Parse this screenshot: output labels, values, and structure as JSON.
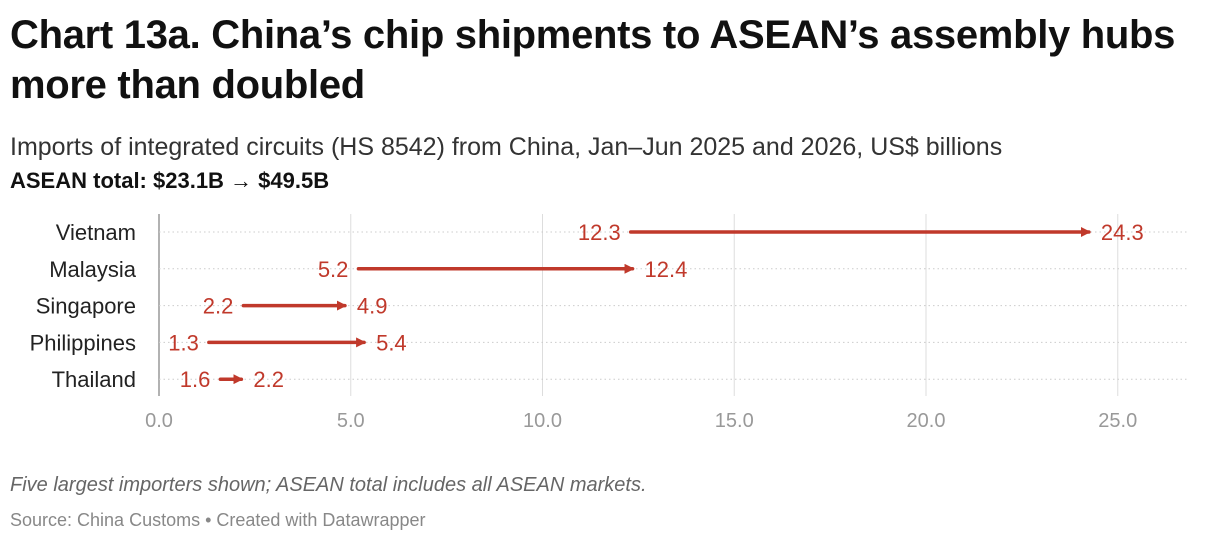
{
  "title": "Chart 13a. China’s chip shipments to ASEAN’s assembly hubs more than doubled",
  "subtitle": "Imports of integrated circuits (HS 8542) from China, Jan–Jun 2025 and 2026, US$ billions",
  "total_label": "ASEAN total: $23.1B → $49.5B",
  "note": "Five largest importers shown; ASEAN total includes all ASEAN markets.",
  "source": "Source: China Customs • Created with Datawrapper",
  "chart_data": {
    "type": "arrow",
    "categories": [
      "Vietnam",
      "Malaysia",
      "Singapore",
      "Philippines",
      "Thailand"
    ],
    "series": [
      {
        "values": [
          12.3,
          5.2,
          2.2,
          1.3,
          1.6
        ]
      },
      {
        "values": [
          24.3,
          12.4,
          4.9,
          5.4,
          2.2
        ]
      }
    ],
    "xlim": [
      0,
      26.5
    ],
    "xticks": [
      0,
      5,
      10,
      15,
      20,
      25
    ],
    "tick_labels": [
      "0.0",
      "5.0",
      "10.0",
      "15.0",
      "20.0",
      "25.0"
    ],
    "arrow_color": "#c0392b",
    "grid": true
  }
}
